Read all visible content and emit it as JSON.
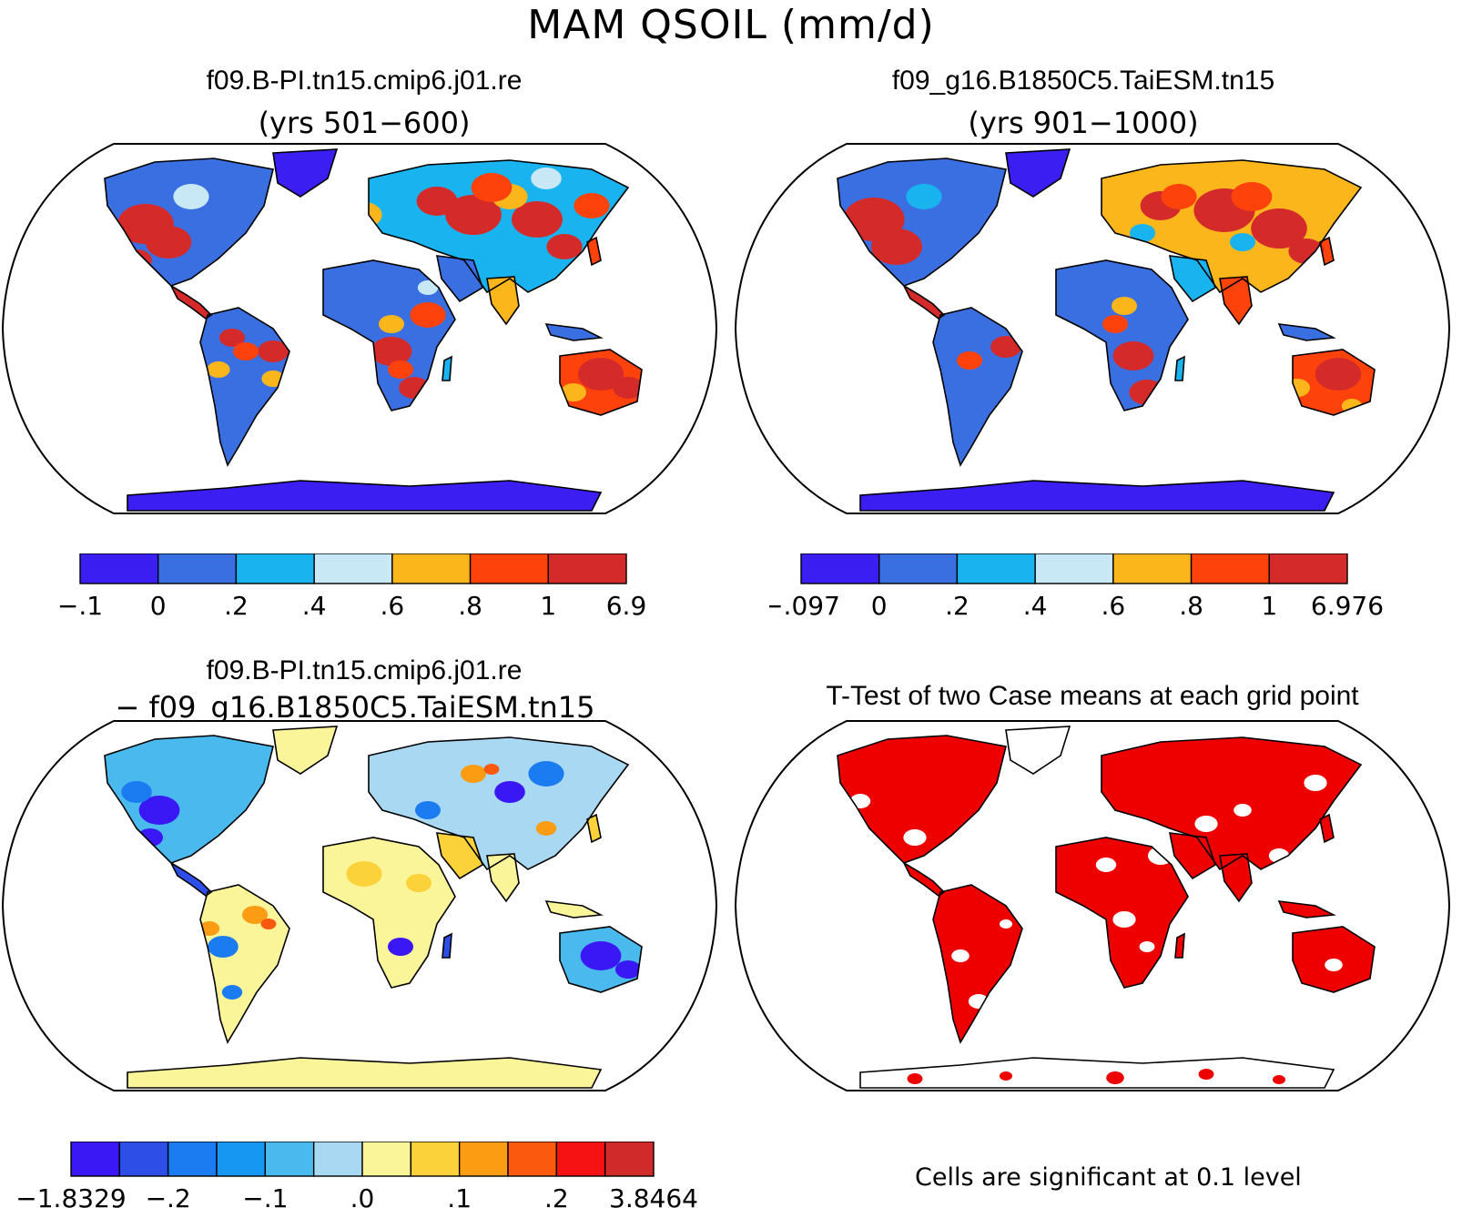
{
  "title": "MAM QSOIL (mm/d)",
  "panels": [
    {
      "id": "p1",
      "title": "f09.B-PI.tn15.cmip6.j01.re",
      "subtitle": "(yrs 501−600)"
    },
    {
      "id": "p2",
      "title": "f09_g16.B1850C5.TaiESM.tn15",
      "subtitle": "(yrs 901−1000)"
    },
    {
      "id": "p3",
      "title": "f09.B-PI.tn15.cmip6.j01.re",
      "subtitle": "− f09_g16.B1850C5.TaiESM.tn15"
    },
    {
      "id": "p4",
      "title": "T-Test of two Case means at each grid point",
      "subtitle": ""
    }
  ],
  "colorbars": {
    "cb1": {
      "labels": [
        "−.1",
        "0",
        ".2",
        ".4",
        ".6",
        ".8",
        "1",
        "6.9"
      ],
      "colors": [
        "#3a1ef2",
        "#3a6fe2",
        "#19b4f0",
        "#c8e8f6",
        "#fbb61c",
        "#fd430b",
        "#d52a2a"
      ]
    },
    "cb2": {
      "labels": [
        "−.097",
        "0",
        ".2",
        ".4",
        ".6",
        ".8",
        "1",
        "6.976"
      ],
      "colors": [
        "#3a1ef2",
        "#3a6fe2",
        "#19b4f0",
        "#c8e8f6",
        "#fbb61c",
        "#fd430b",
        "#d52a2a"
      ]
    },
    "cb3": {
      "labels": [
        "−1.8329",
        "−.2",
        "−.1",
        ".0",
        ".1",
        ".2",
        "3.8464"
      ],
      "colors": [
        "#3a17f5",
        "#2e4ee8",
        "#1b7cf2",
        "#1597f2",
        "#4ab9ee",
        "#a9d9f2",
        "#fbf59a",
        "#fbd23a",
        "#fb9c12",
        "#fb5a0e",
        "#f61212",
        "#d12a2a"
      ]
    }
  },
  "ttest_color": "#ee0000",
  "footnote": "Cells are significant at 0.1 level"
}
